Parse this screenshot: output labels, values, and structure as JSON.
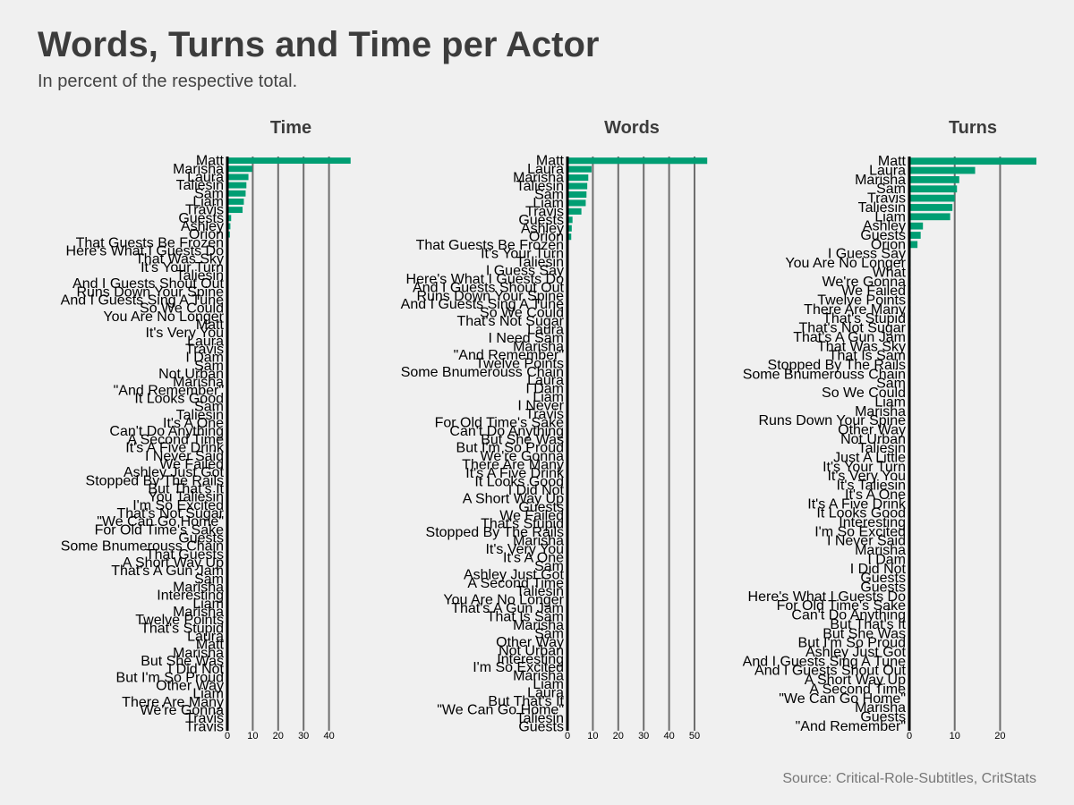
{
  "title": "Words, Turns and Time per Actor",
  "subtitle": "In percent of the respective total.",
  "source": "Source: Critical-Role-Subtitles, CritStats",
  "colors": {
    "bar": "#009e73",
    "grid": "#6e6e6e",
    "background": "#f0f0f0",
    "axis": "#000000"
  },
  "chart_data": [
    {
      "type": "bar",
      "orientation": "horizontal",
      "title": "Time",
      "xlim": [
        0,
        50
      ],
      "xticks": [
        0,
        10,
        20,
        30,
        40
      ],
      "grid": true,
      "categories": [
        "Matt",
        "Marisha",
        "Laura",
        "Taliesin",
        "Sam",
        "Liam",
        "Travis",
        "Guests",
        "Ashley",
        "Orion",
        "That Guests Be Frozen",
        "Here's What I Guests Do",
        "That Was Sky",
        "It's Your Turn",
        "Taliesin",
        "And I Guests Shout Out",
        "Runs Down Your Spine",
        "And I Guests Sing A Tune",
        "So We Could",
        "You Are No Longer",
        "Matt",
        "It's Very You",
        "Laura",
        "Travis",
        "I Dam",
        "Sam",
        "Not Urban",
        "Marisha",
        "\"And Remember\"",
        "It Looks Good",
        "Sam",
        "Taliesin",
        "It's A One",
        "Can't Do Anything",
        "A Second Time",
        "It's A Five Drink",
        "I Never Said",
        "We Failed",
        "Ashley Just Got",
        "Stopped By The Rails",
        "But That's It",
        "You Taliesin",
        "I'm So Excited",
        "That's Not Sugar",
        "\"We Can Go Home\"",
        "For Old Time's Sake",
        "Guests",
        "Some Bnumerouss Chain",
        "That Guests",
        "A Short Way Up",
        "That's A Gun Jam",
        "Sam",
        "Marisha",
        "Interesting",
        "Liam",
        "Marisha",
        "Twelve Points",
        "That's Stupid",
        "Laura",
        "Matt",
        "Marisha",
        "But She Was",
        "I Did Not",
        "But I'm So Proud",
        "Other Way",
        "Liam",
        "There Are Many",
        "We're Gonna",
        "Travis",
        "Travis"
      ],
      "values": [
        48.5,
        9.8,
        8.3,
        7.5,
        7.2,
        6.5,
        6.0,
        1.5,
        1.2,
        1.0,
        0.4,
        0.4,
        0.4,
        0.3,
        0.3,
        0.3,
        0.3,
        0.3,
        0.3,
        0.3,
        0.2,
        0.2,
        0.2,
        0.2,
        0.2,
        0.2,
        0.2,
        0.2,
        0.2,
        0.2,
        0.1,
        0.1,
        0.1,
        0.1,
        0.1,
        0.1,
        0.1,
        0.1,
        0.1,
        0.1,
        0.1,
        0.1,
        0.1,
        0.1,
        0.1,
        0.1,
        0.1,
        0.1,
        0.1,
        0.1,
        0.1,
        0.1,
        0.1,
        0.1,
        0.1,
        0.1,
        0.1,
        0.1,
        0.1,
        0.1,
        0.1,
        0.1,
        0.1,
        0.1,
        0.1,
        0.1,
        0.1,
        0.1,
        0.1,
        0.1
      ]
    },
    {
      "type": "bar",
      "orientation": "horizontal",
      "title": "Words",
      "xlim": [
        0,
        50
      ],
      "xticks": [
        0,
        10,
        20,
        30,
        40,
        50
      ],
      "grid": true,
      "categories": [
        "Matt",
        "Laura",
        "Marisha",
        "Taliesin",
        "Sam",
        "Liam",
        "Travis",
        "Guests",
        "Ashley",
        "Orion",
        "That Guests Be Frozen",
        "It's Your Turn",
        "Taliesin",
        "I Guess Say",
        "Here's What I Guests Do",
        "And I Guests Shout Out",
        "Runs Down Your Spine",
        "And I Guests Sing A Tune",
        "So We Could",
        "That's Not Sugar",
        "Laura",
        "I Need Sam",
        "Marisha",
        "\"And Remember\"",
        "Twelve Points",
        "Some Bnumerouss Chain",
        "Laura",
        "I Dam",
        "Liam",
        "I Never",
        "Travis",
        "For Old Time's Sake",
        "Can't Do Anything",
        "But She Was",
        "But I'm So Proud",
        "We're Gonna",
        "There Are Many",
        "It's A Five Drink",
        "It Looks Good",
        "I Did Not",
        "A Short Way Up",
        "Guests",
        "We Failed",
        "That's Stupid",
        "Stopped By The Rails",
        "Marisha",
        "It's Very You",
        "It's A One",
        "Sam",
        "Ashley Just Got",
        "A Second Time",
        "Taliesin",
        "You Are No Longer",
        "That's A Gun Jam",
        "That Is Sam",
        "Marisha",
        "Sam",
        "Other Way",
        "Not Urban",
        "Interesting",
        "I'm So Excited",
        "Marisha",
        "Liam",
        "Laura",
        "But That's It",
        "\"We Can Go Home\"",
        "Taliesin",
        "Guests"
      ],
      "values": [
        55.0,
        9.5,
        8.2,
        7.8,
        7.5,
        7.2,
        5.5,
        2.0,
        1.7,
        1.5,
        0.4,
        0.4,
        0.3,
        0.3,
        0.3,
        0.3,
        0.3,
        0.3,
        0.3,
        0.3,
        0.2,
        0.2,
        0.2,
        0.2,
        0.2,
        0.2,
        0.2,
        0.2,
        0.2,
        0.2,
        0.1,
        0.1,
        0.1,
        0.1,
        0.1,
        0.1,
        0.1,
        0.1,
        0.1,
        0.1,
        0.1,
        0.1,
        0.1,
        0.1,
        0.1,
        0.1,
        0.1,
        0.1,
        0.1,
        0.1,
        0.1,
        0.1,
        0.1,
        0.1,
        0.1,
        0.1,
        0.1,
        0.1,
        0.1,
        0.1,
        0.1,
        0.1,
        0.1,
        0.1,
        0.1,
        0.1,
        0.1,
        0.1
      ]
    },
    {
      "type": "bar",
      "orientation": "horizontal",
      "title": "Turns",
      "xlim": [
        0,
        28
      ],
      "xticks": [
        0,
        10,
        20
      ],
      "grid": true,
      "categories": [
        "Matt",
        "Laura",
        "Marisha",
        "Sam",
        "Travis",
        "Taliesin",
        "Liam",
        "Ashley",
        "Guests",
        "Orion",
        "I Guess Say",
        "You Are No Longer",
        "What",
        "We're Gonna",
        "We Failed",
        "Twelve Points",
        "There Are Many",
        "That's Stupid",
        "That's Not Sugar",
        "That's A Gun Jam",
        "That Was Sky",
        "That Is Sam",
        "Stopped By The Rails",
        "Some Bnumerouss Chain",
        "Sam",
        "So We Could",
        "Liam",
        "Marisha",
        "Runs Down Your Spine",
        "Other Way",
        "Not Urban",
        "Taliesin",
        "Just A Little",
        "It's Your Turn",
        "It's Very You",
        "It's Taliesin",
        "It's A One",
        "It's A Five Drink",
        "It Looks Good",
        "Interesting",
        "I'm So Excited",
        "I Never Said",
        "Marisha",
        "I Dam",
        "I Did Not",
        "Guests",
        "Guests",
        "Here's What I Guests Do",
        "For Old Time's Sake",
        "Can't Do Anything",
        "But That's It",
        "But She Was",
        "But I'm So Proud",
        "Ashley Just Got",
        "And I Guests Sing A Tune",
        "And I Guests Shout Out",
        "A Short Way Up",
        "A Second Time",
        "\"We Can Go Home\"",
        "Marisha",
        "Guests",
        "\"And Remember\""
      ],
      "values": [
        28.0,
        14.5,
        11.0,
        10.5,
        10.0,
        9.5,
        9.0,
        3.0,
        2.5,
        1.8,
        0.3,
        0.3,
        0.3,
        0.3,
        0.3,
        0.3,
        0.3,
        0.3,
        0.3,
        0.3,
        0.2,
        0.2,
        0.2,
        0.2,
        0.2,
        0.2,
        0.2,
        0.2,
        0.2,
        0.2,
        0.1,
        0.1,
        0.1,
        0.1,
        0.1,
        0.1,
        0.1,
        0.1,
        0.1,
        0.1,
        0.1,
        0.1,
        0.1,
        0.1,
        0.1,
        0.1,
        0.1,
        0.1,
        0.1,
        0.1,
        0.1,
        0.1,
        0.1,
        0.1,
        0.1,
        0.1,
        0.1,
        0.1,
        0.1,
        0.1,
        0.1,
        0.1
      ]
    }
  ]
}
